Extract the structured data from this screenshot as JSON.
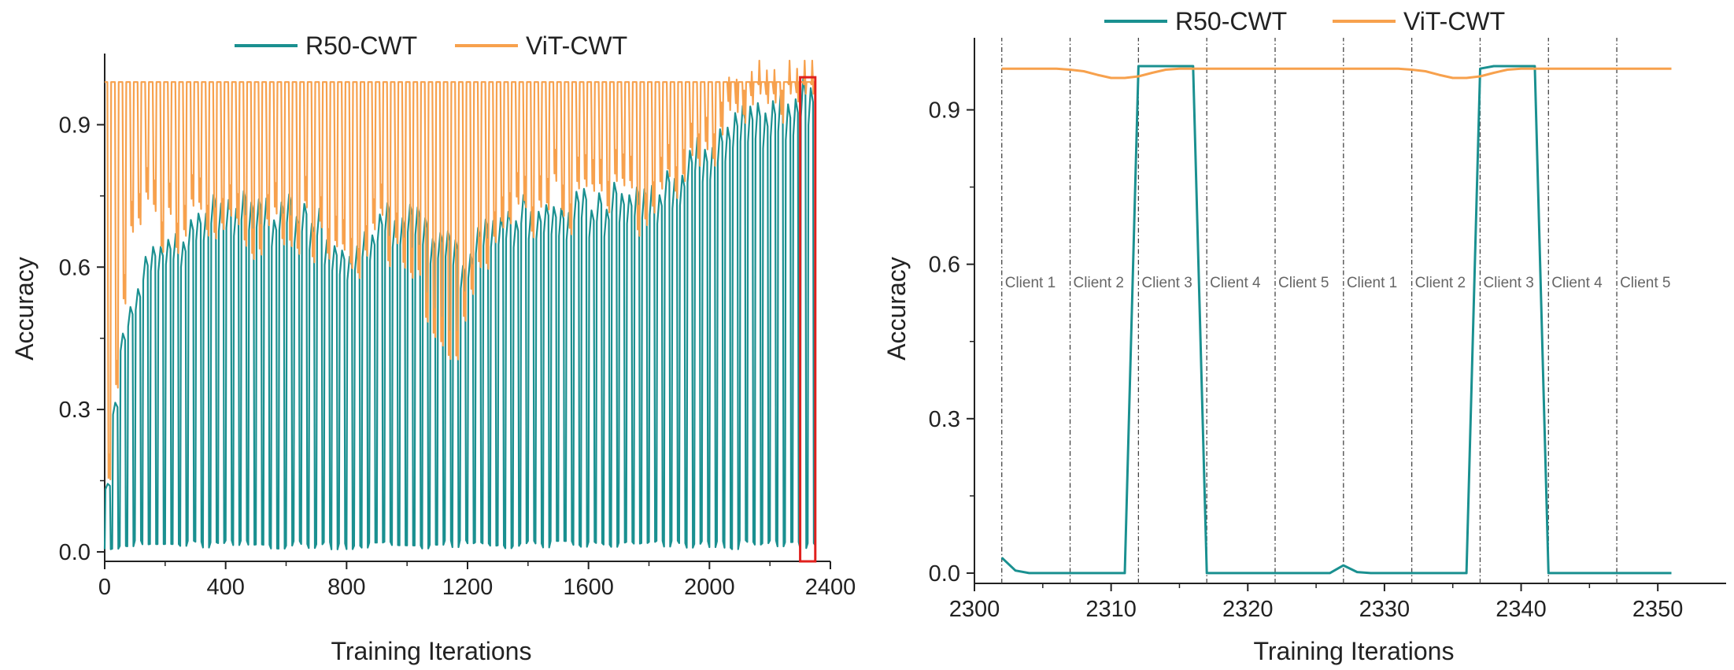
{
  "colors": {
    "r50": "#1a9090",
    "vit": "#f7a14d",
    "highlight": "#e0201d",
    "axis": "#222222",
    "divider": "#444444",
    "client_text": "#666666"
  },
  "chart_data": [
    {
      "type": "line",
      "xlabel": "Training Iterations",
      "ylabel": "Accuracy",
      "xlim": [
        0,
        2400
      ],
      "ylim": [
        -0.02,
        1.05
      ],
      "xticks": [
        "0",
        "400",
        "800",
        "1200",
        "1600",
        "2000",
        "2400"
      ],
      "yticks": [
        "0.0",
        "0.3",
        "0.6",
        "0.9"
      ],
      "legend": {
        "placement": "top-center"
      },
      "highlight_box": {
        "x": [
          2300,
          2350
        ],
        "y": [
          -0.02,
          1.0
        ]
      },
      "cycle_period": 25,
      "series": [
        {
          "name": "R50-CWT",
          "description": "oscillates each cycle between near 0 and a per-cycle peak",
          "envelope_x": [
            0,
            30,
            60,
            100,
            150,
            200,
            300,
            400,
            500,
            600,
            700,
            800,
            900,
            1000,
            1100,
            1200,
            1300,
            1400,
            1500,
            1600,
            1700,
            1800,
            1900,
            2000,
            2100,
            2200,
            2300,
            2350
          ],
          "envelope_max": [
            0.1,
            0.25,
            0.45,
            0.55,
            0.62,
            0.65,
            0.7,
            0.75,
            0.72,
            0.73,
            0.71,
            0.62,
            0.7,
            0.72,
            0.68,
            0.62,
            0.71,
            0.73,
            0.72,
            0.74,
            0.75,
            0.77,
            0.8,
            0.87,
            0.92,
            0.95,
            0.97,
            0.97
          ],
          "min": 0.0
        },
        {
          "name": "ViT-CWT",
          "description": "oscillates each cycle between a per-cycle minimum and about 0.99",
          "envelope_x": [
            0,
            30,
            60,
            100,
            150,
            200,
            300,
            400,
            500,
            600,
            700,
            800,
            900,
            1000,
            1100,
            1150,
            1200,
            1300,
            1400,
            1500,
            1600,
            1700,
            1800,
            1900,
            2000,
            2100,
            2200,
            2300,
            2350
          ],
          "envelope_min": [
            0.1,
            0.3,
            0.55,
            0.68,
            0.72,
            0.68,
            0.72,
            0.73,
            0.68,
            0.7,
            0.67,
            0.6,
            0.68,
            0.62,
            0.5,
            0.4,
            0.55,
            0.68,
            0.72,
            0.74,
            0.73,
            0.76,
            0.72,
            0.78,
            0.88,
            0.94,
            0.97,
            0.98,
            0.98
          ],
          "max": 0.99
        }
      ]
    },
    {
      "type": "line",
      "xlabel": "Training Iterations",
      "ylabel": "Accuracy",
      "xlim": [
        2300,
        2355
      ],
      "ylim": [
        -0.02,
        1.04
      ],
      "xticks": [
        "2300",
        "2310",
        "2320",
        "2330",
        "2340",
        "2350"
      ],
      "yticks": [
        "0.0",
        "0.3",
        "0.6",
        "0.9"
      ],
      "legend": {
        "placement": "top-center"
      },
      "client_dividers": [
        2302,
        2307,
        2312,
        2317,
        2322,
        2327,
        2332,
        2337,
        2342,
        2347
      ],
      "client_labels": [
        "Client 1",
        "Client 2",
        "Client 3",
        "Client 4",
        "Client 5",
        "Client 1",
        "Client 2",
        "Client 3",
        "Client 4",
        "Client 5"
      ],
      "series": [
        {
          "name": "R50-CWT",
          "x": [
            2302,
            2303,
            2304,
            2305,
            2306,
            2307,
            2308,
            2309,
            2310,
            2311,
            2312,
            2313,
            2314,
            2315,
            2316,
            2317,
            2318,
            2319,
            2320,
            2321,
            2322,
            2323,
            2324,
            2325,
            2326,
            2327,
            2328,
            2329,
            2330,
            2331,
            2332,
            2333,
            2334,
            2335,
            2336,
            2337,
            2338,
            2339,
            2340,
            2341,
            2342,
            2343,
            2344,
            2345,
            2346,
            2347,
            2348,
            2349,
            2350,
            2351
          ],
          "y": [
            0.03,
            0.005,
            0.0,
            0.0,
            0.0,
            0.0,
            0.0,
            0.0,
            0.0,
            0.0,
            0.985,
            0.985,
            0.985,
            0.985,
            0.985,
            0.0,
            0.0,
            0.0,
            0.0,
            0.0,
            0.0,
            0.0,
            0.0,
            0.0,
            0.0,
            0.015,
            0.002,
            0.0,
            0.0,
            0.0,
            0.0,
            0.0,
            0.0,
            0.0,
            0.0,
            0.98,
            0.985,
            0.985,
            0.985,
            0.985,
            0.0,
            0.0,
            0.0,
            0.0,
            0.0,
            0.0,
            0.0,
            0.0,
            0.0,
            0.0
          ]
        },
        {
          "name": "ViT-CWT",
          "x": [
            2302,
            2303,
            2304,
            2305,
            2306,
            2307,
            2308,
            2309,
            2310,
            2311,
            2312,
            2313,
            2314,
            2315,
            2316,
            2317,
            2318,
            2319,
            2320,
            2321,
            2322,
            2323,
            2324,
            2325,
            2326,
            2327,
            2328,
            2329,
            2330,
            2331,
            2332,
            2333,
            2334,
            2335,
            2336,
            2337,
            2338,
            2339,
            2340,
            2341,
            2342,
            2343,
            2344,
            2345,
            2346,
            2347,
            2348,
            2349,
            2350,
            2351
          ],
          "y": [
            0.98,
            0.98,
            0.98,
            0.98,
            0.98,
            0.978,
            0.975,
            0.968,
            0.962,
            0.962,
            0.965,
            0.972,
            0.978,
            0.98,
            0.98,
            0.98,
            0.98,
            0.98,
            0.98,
            0.98,
            0.98,
            0.98,
            0.98,
            0.98,
            0.98,
            0.98,
            0.98,
            0.98,
            0.98,
            0.98,
            0.978,
            0.975,
            0.968,
            0.962,
            0.962,
            0.965,
            0.972,
            0.978,
            0.98,
            0.98,
            0.98,
            0.98,
            0.98,
            0.98,
            0.98,
            0.98,
            0.98,
            0.98,
            0.98,
            0.98
          ]
        }
      ]
    }
  ]
}
